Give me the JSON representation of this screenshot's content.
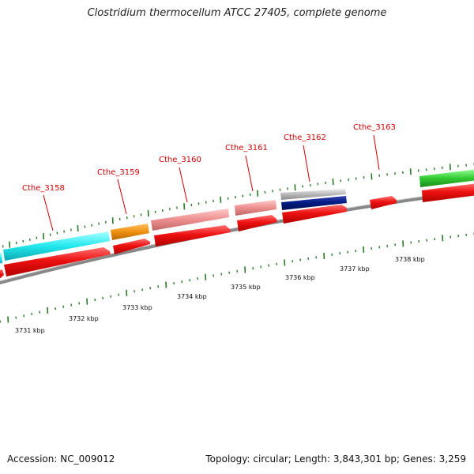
{
  "title": "Clostridium thermocellum ATCC 27405, complete genome",
  "footer": {
    "accession": "Accession: NC_009012",
    "stats": "Topology: circular; Length: 3,843,301 bp; Genes: 3,259"
  },
  "colors": {
    "backbone": "#888888",
    "tick": "#2a7a2a",
    "forward_cds": "#ee1111",
    "gene_label": "#cc0000",
    "cyan_feature": "#22e8ee",
    "orange_feature": "#ee9011",
    "pink_feature": "#ee8f8f",
    "gray_feature": "#b8b8b8",
    "navy_feature": "#001a80",
    "green_feature": "#33cc33"
  },
  "scale_labels": [
    "3731 kbp",
    "3732 kbp",
    "3733 kbp",
    "3734 kbp",
    "3735 kbp",
    "3736 kbp",
    "3737 kbp",
    "3738 kbp"
  ],
  "gene_labels": [
    "Cthe_3158",
    "Cthe_3159",
    "Cthe_3160",
    "Cthe_3161",
    "Cthe_3162",
    "Cthe_3163"
  ]
}
